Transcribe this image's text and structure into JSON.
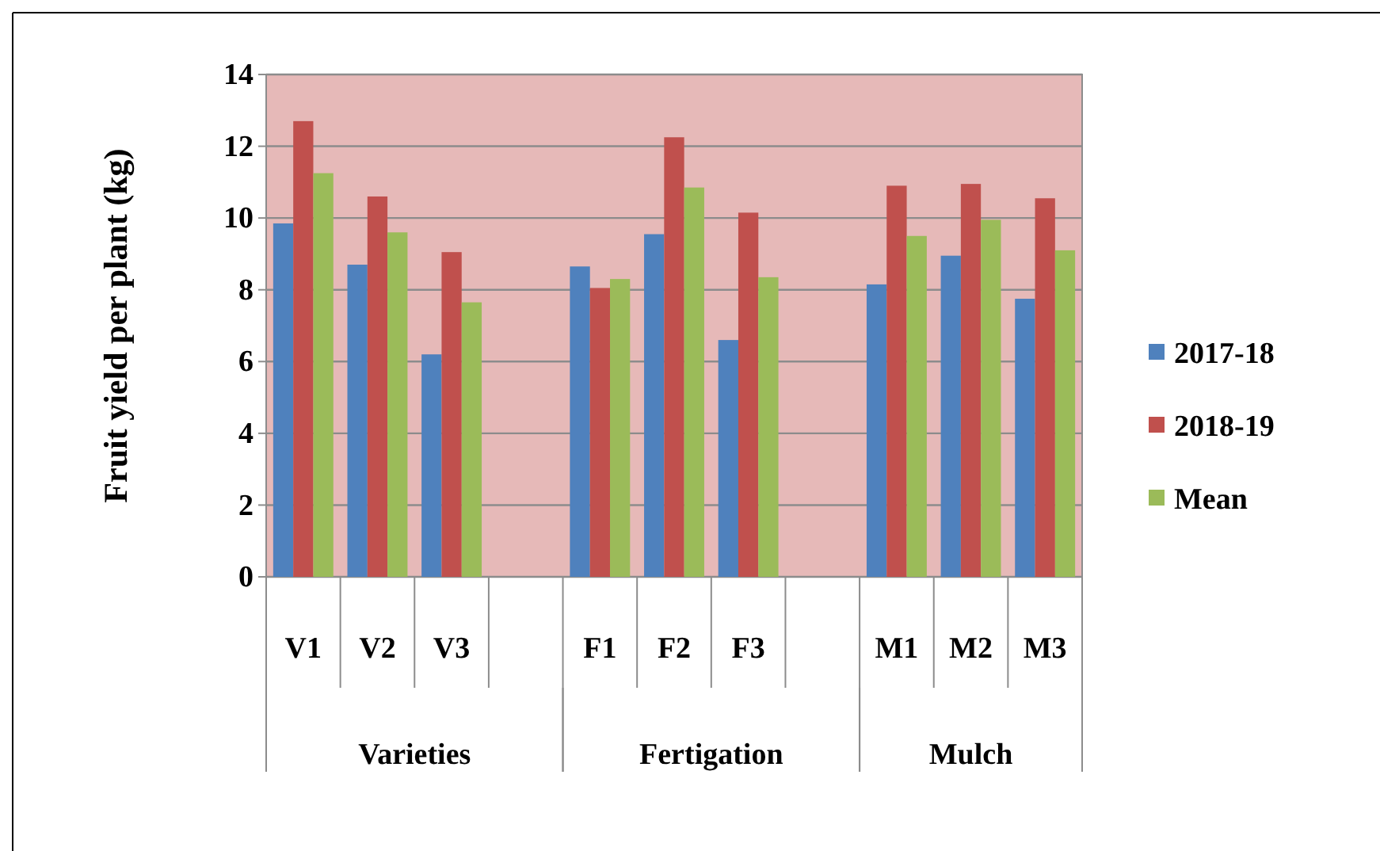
{
  "chart_data": {
    "type": "bar",
    "ylabel": "Fruit yield per plant (kg)",
    "categories": [
      "V1",
      "V2",
      "V3",
      null,
      "F1",
      "F2",
      "F3",
      null,
      "M1",
      "M2",
      "M3"
    ],
    "series": [
      {
        "name": "2017-18",
        "color": "#4f81bd",
        "values": [
          9.85,
          8.7,
          6.2,
          null,
          8.65,
          9.55,
          6.6,
          null,
          8.15,
          8.95,
          7.75
        ]
      },
      {
        "name": "2018-19",
        "color": "#c0504d",
        "values": [
          12.7,
          10.6,
          9.05,
          null,
          8.05,
          12.25,
          10.15,
          null,
          10.9,
          10.95,
          10.55
        ]
      },
      {
        "name": "Mean",
        "color": "#9bbb59",
        "values": [
          11.25,
          9.6,
          7.65,
          null,
          8.3,
          10.85,
          8.35,
          null,
          9.5,
          9.95,
          9.1
        ]
      }
    ],
    "ylim": [
      0,
      14
    ],
    "yticks": [
      0,
      2,
      4,
      6,
      8,
      10,
      12,
      14
    ],
    "grid": "y",
    "legend": "right",
    "annotations": [
      "Varieties",
      "Fertigation",
      "Mulch"
    ]
  }
}
